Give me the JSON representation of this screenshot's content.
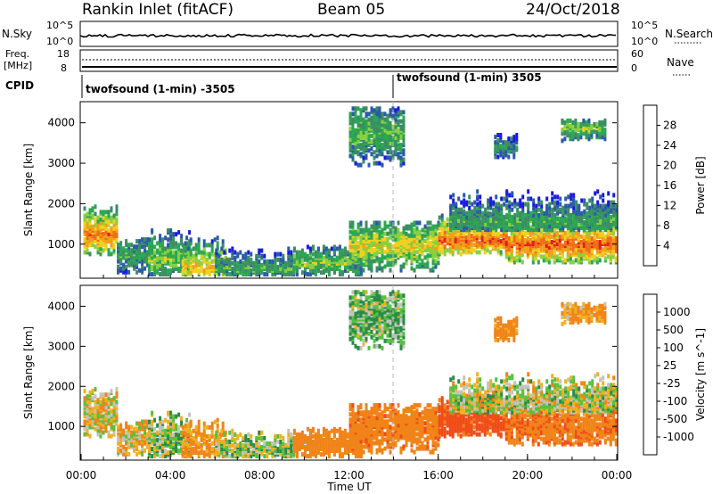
{
  "header": {
    "station": "Rankin Inlet (fitACF)",
    "beam": "Beam 05",
    "date": "24/Oct/2018"
  },
  "top_panels": {
    "nsky_label": "N.Sky",
    "nsky_ticks": [
      "10^5",
      "10^0"
    ],
    "nsearch_label": "N.Search",
    "freq_label_line1": "Freq.",
    "freq_label_line2": "[MHz]",
    "freq_ticks": [
      "18",
      "8"
    ],
    "nave_ticks": [
      "60",
      "0"
    ],
    "nave_label": "Nave",
    "cpid_label": "CPID",
    "cpid_segments": [
      "twofsound (1-min) -3505",
      "twofsound (1-min) 3505"
    ]
  },
  "colors": {
    "power_scale": [
      "#1a1ae0",
      "#2a5aa8",
      "#3c8c64",
      "#2aa852",
      "#88d040",
      "#f0d020",
      "#f0a018",
      "#f06c18",
      "#e02018"
    ],
    "velocity_scale": [
      "#1a3aa8",
      "#3a78c0",
      "#2a8a4a",
      "#58c040",
      "#c4c4bc",
      "#f0b020",
      "#f08418",
      "#f04c18",
      "#e01818"
    ]
  },
  "chart_data": [
    {
      "type": "heatmap",
      "name": "power",
      "ylabel": "Slant Range [km]",
      "y_ticks": [
        "4000",
        "3000",
        "2000",
        "1000"
      ],
      "ylim": [
        180,
        4500
      ],
      "colorbar_label": "Power [dB]",
      "colorbar_ticks": [
        "28",
        "24",
        "20",
        "16",
        "12",
        "8",
        "4"
      ],
      "colorbar_range": [
        0,
        32
      ],
      "dashed_line_x": 14.0
    },
    {
      "type": "heatmap",
      "name": "velocity",
      "ylabel": "Slant Range [km]",
      "y_ticks": [
        "4000",
        "3000",
        "2000",
        "1000"
      ],
      "ylim": [
        180,
        4500
      ],
      "colorbar_label": "Velocity [m s^-1]",
      "colorbar_ticks": [
        "1000",
        "500",
        "100",
        "25",
        "-25",
        "-100",
        "-500",
        "-1000"
      ],
      "x_ticks": [
        "00:00",
        "04:00",
        "08:00",
        "12:00",
        "16:00",
        "20:00",
        "00:00"
      ],
      "xlabel": "Time UT",
      "xlim": [
        0,
        24
      ],
      "dashed_line_x": 14.0
    }
  ],
  "echo_regions": [
    {
      "t0": 0.1,
      "t1": 1.6,
      "r0": 700,
      "r1": 1900,
      "core": 1200,
      "pw": 26,
      "vel": -30
    },
    {
      "t0": 1.6,
      "t1": 3.0,
      "r0": 250,
      "r1": 1100,
      "core": 700,
      "pw": 12,
      "vel": -60
    },
    {
      "t0": 3.0,
      "t1": 4.8,
      "r0": 200,
      "r1": 1300,
      "core": 600,
      "pw": 16,
      "vel": 40
    },
    {
      "t0": 4.5,
      "t1": 6.5,
      "r0": 200,
      "r1": 1200,
      "core": 400,
      "pw": 22,
      "vel": -150
    },
    {
      "t0": 6.0,
      "t1": 9.5,
      "r0": 200,
      "r1": 900,
      "core": 350,
      "pw": 12,
      "vel": 30
    },
    {
      "t0": 9.5,
      "t1": 12.5,
      "r0": 200,
      "r1": 900,
      "core": 500,
      "pw": 16,
      "vel": -300
    },
    {
      "t0": 12.0,
      "t1": 14.5,
      "r0": 2900,
      "r1": 4300,
      "core": 3700,
      "pw": 14,
      "vel": 80
    },
    {
      "t0": 12.0,
      "t1": 16.0,
      "r0": 300,
      "r1": 1500,
      "core": 900,
      "pw": 20,
      "vel": -400
    },
    {
      "t0": 16.0,
      "t1": 19.0,
      "r0": 700,
      "r1": 1700,
      "core": 1050,
      "pw": 28,
      "vel": -600
    },
    {
      "t0": 19.0,
      "t1": 24.0,
      "r0": 500,
      "r1": 1600,
      "core": 950,
      "pw": 28,
      "vel": -450
    },
    {
      "t0": 16.5,
      "t1": 24.0,
      "r0": 1300,
      "r1": 2300,
      "core": 1500,
      "pw": 12,
      "vel": 0
    },
    {
      "t0": 18.5,
      "t1": 19.5,
      "r0": 3100,
      "r1": 3700,
      "core": 3300,
      "pw": 10,
      "vel": -200
    },
    {
      "t0": 21.5,
      "t1": 23.5,
      "r0": 3500,
      "r1": 4000,
      "core": 3800,
      "pw": 16,
      "vel": -120
    }
  ]
}
